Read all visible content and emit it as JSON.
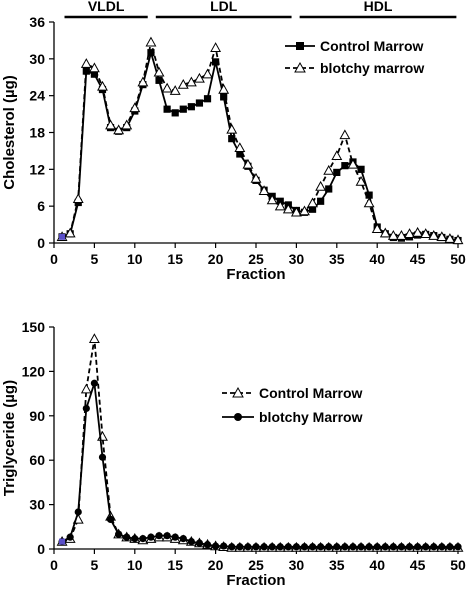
{
  "chart_data": [
    {
      "type": "line",
      "xlabel": "Fraction",
      "ylabel": "Cholesterol (µg)",
      "xlim": [
        0,
        50
      ],
      "ylim": [
        0,
        36
      ],
      "xticks": [
        0,
        5,
        10,
        15,
        20,
        25,
        30,
        35,
        40,
        45,
        50
      ],
      "yticks": [
        0,
        6,
        12,
        18,
        24,
        30,
        36
      ],
      "grid": false,
      "legend_position": "top-right",
      "bands": [
        {
          "label": "VLDL",
          "from": 1.3,
          "to": 11.6
        },
        {
          "label": "LDL",
          "from": 12.6,
          "to": 29.4
        },
        {
          "label": "HDL",
          "from": 30.4,
          "to": 49.8
        }
      ],
      "x": [
        1,
        2,
        3,
        4,
        5,
        6,
        7,
        8,
        9,
        10,
        11,
        12,
        13,
        14,
        15,
        16,
        17,
        18,
        19,
        20,
        21,
        22,
        23,
        24,
        25,
        26,
        27,
        28,
        29,
        30,
        31,
        32,
        33,
        34,
        35,
        36,
        37,
        38,
        39,
        40,
        41,
        42,
        43,
        44,
        45,
        46,
        47,
        48,
        49,
        50
      ],
      "series": [
        {
          "name": "Control Marrow",
          "color": "#000000",
          "marker": "filled-square",
          "dashed": false,
          "values": [
            1.0,
            1.5,
            6.6,
            28.0,
            27.5,
            25.0,
            18.8,
            18.2,
            18.8,
            21.5,
            25.8,
            31.0,
            26.5,
            21.8,
            21.2,
            21.8,
            22.2,
            22.8,
            23.5,
            29.5,
            23.8,
            17.0,
            14.5,
            12.5,
            10.2,
            8.6,
            7.6,
            6.8,
            6.2,
            5.3,
            5.0,
            5.5,
            6.8,
            8.8,
            11.5,
            12.6,
            13.2,
            12.0,
            7.8,
            2.6,
            1.5,
            0.9,
            0.8,
            1.0,
            1.3,
            1.4,
            1.2,
            0.9,
            0.6,
            0.4
          ]
        },
        {
          "name": "blotchy marrow",
          "color": "#000000",
          "marker": "open-triangle",
          "dashed": true,
          "values": [
            1.0,
            1.6,
            7.2,
            29.2,
            28.5,
            25.5,
            19.2,
            18.4,
            19.2,
            22.0,
            26.2,
            32.7,
            27.8,
            25.2,
            24.8,
            25.8,
            26.2,
            26.8,
            27.5,
            31.8,
            25.0,
            18.5,
            15.5,
            12.8,
            10.5,
            8.5,
            7.0,
            6.0,
            5.5,
            5.0,
            5.2,
            6.5,
            9.2,
            11.8,
            14.2,
            17.6,
            12.8,
            10.0,
            6.5,
            2.3,
            1.6,
            1.2,
            1.2,
            1.5,
            1.7,
            1.5,
            1.2,
            1.0,
            0.7,
            0.5
          ]
        }
      ]
    },
    {
      "type": "line",
      "xlabel": "Fraction",
      "ylabel": "Triglyceride (µg)",
      "xlim": [
        0,
        50
      ],
      "ylim": [
        0,
        150
      ],
      "xticks": [
        0,
        5,
        10,
        15,
        20,
        25,
        30,
        35,
        40,
        45,
        50
      ],
      "yticks": [
        0,
        30,
        60,
        90,
        120,
        150
      ],
      "grid": false,
      "legend_position": "center-right",
      "x": [
        1,
        2,
        3,
        4,
        5,
        6,
        7,
        8,
        9,
        10,
        11,
        12,
        13,
        14,
        15,
        16,
        17,
        18,
        19,
        20,
        21,
        22,
        23,
        24,
        25,
        26,
        27,
        28,
        29,
        30,
        31,
        32,
        33,
        34,
        35,
        36,
        37,
        38,
        39,
        40,
        41,
        42,
        43,
        44,
        45,
        46,
        47,
        48,
        49,
        50
      ],
      "series": [
        {
          "name": "Control Marrow",
          "color": "#000000",
          "marker": "open-triangle",
          "dashed": true,
          "values": [
            5,
            7,
            20,
            108,
            142,
            76,
            22,
            10,
            8,
            7,
            6,
            7,
            8,
            8,
            7,
            6,
            5,
            4,
            3,
            2,
            1.5,
            1,
            1,
            1,
            1,
            1,
            1,
            1,
            1,
            1,
            1,
            1,
            1,
            1,
            1,
            1,
            1,
            1,
            1,
            1,
            1,
            1,
            1,
            1,
            1,
            1,
            1,
            1,
            1,
            1
          ]
        },
        {
          "name": "blotchy marrow",
          "color": "#000000",
          "marker": "filled-circle",
          "dashed": false,
          "values": [
            5,
            8,
            25,
            95,
            112,
            62,
            20,
            10,
            8,
            7,
            7,
            8,
            9,
            9,
            8,
            7,
            5,
            4,
            3,
            2,
            2,
            1.5,
            1.5,
            1.5,
            1.5,
            1.5,
            1.5,
            1.5,
            1.5,
            1.5,
            1.5,
            1.5,
            1.5,
            1.5,
            1.5,
            1.5,
            1.5,
            1.5,
            1.5,
            1.5,
            1.5,
            1.5,
            1.5,
            1.5,
            1.5,
            1.5,
            1.5,
            1.5,
            1.5,
            1.5
          ]
        }
      ]
    }
  ],
  "legend": {
    "top": [
      "Control Marrow",
      "blotchy marrow"
    ],
    "bottom": [
      "Control Marrow",
      "blotchy Marrow"
    ]
  }
}
